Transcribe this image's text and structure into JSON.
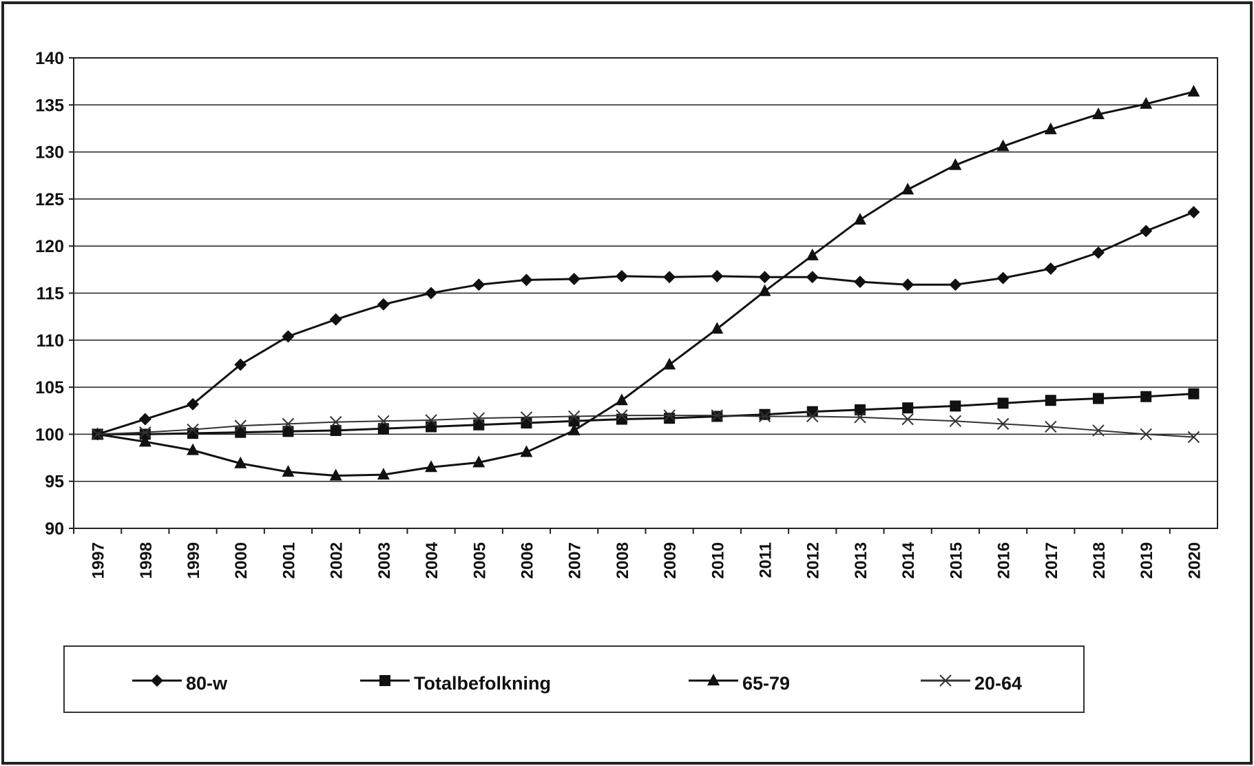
{
  "chart_data": {
    "type": "line",
    "categories": [
      "1997",
      "1998",
      "1999",
      "2000",
      "2001",
      "2002",
      "2003",
      "2004",
      "2005",
      "2006",
      "2007",
      "2008",
      "2009",
      "2010",
      "2011",
      "2012",
      "2013",
      "2014",
      "2015",
      "2016",
      "2017",
      "2018",
      "2019",
      "2020"
    ],
    "series": [
      {
        "name": "80-w",
        "color": "#111111",
        "marker": "diamond",
        "values": [
          100,
          101.6,
          103.2,
          107.4,
          110.4,
          112.2,
          113.8,
          115.0,
          115.9,
          116.4,
          116.5,
          116.8,
          116.7,
          116.8,
          116.7,
          116.7,
          116.2,
          115.9,
          115.9,
          116.6,
          117.6,
          119.3,
          121.6,
          123.6
        ]
      },
      {
        "name": "Totalbefolkning",
        "color": "#111111",
        "marker": "square",
        "values": [
          100,
          100.0,
          100.1,
          100.2,
          100.3,
          100.4,
          100.6,
          100.8,
          101.0,
          101.2,
          101.4,
          101.6,
          101.7,
          101.9,
          102.1,
          102.4,
          102.6,
          102.8,
          103.0,
          103.3,
          103.6,
          103.8,
          104.0,
          104.3
        ]
      },
      {
        "name": "65-79",
        "color": "#111111",
        "marker": "triangle",
        "values": [
          100,
          99.2,
          98.3,
          96.9,
          96.0,
          95.6,
          95.7,
          96.5,
          97.0,
          98.1,
          100.4,
          103.6,
          107.4,
          111.2,
          115.2,
          119.0,
          122.8,
          126.0,
          128.6,
          130.6,
          132.4,
          134.0,
          135.1,
          136.4
        ]
      },
      {
        "name": "20-64",
        "color": "#333333",
        "marker": "x",
        "values": [
          100,
          100.2,
          100.5,
          100.9,
          101.1,
          101.3,
          101.4,
          101.5,
          101.7,
          101.8,
          101.9,
          102.0,
          102.0,
          102.0,
          101.9,
          101.9,
          101.8,
          101.6,
          101.4,
          101.1,
          100.8,
          100.4,
          100.0,
          99.7
        ]
      }
    ],
    "ylim": [
      90,
      140
    ],
    "yticks": [
      90,
      95,
      100,
      105,
      110,
      115,
      120,
      125,
      130,
      135,
      140
    ],
    "grid": true,
    "legend": "bottom"
  }
}
